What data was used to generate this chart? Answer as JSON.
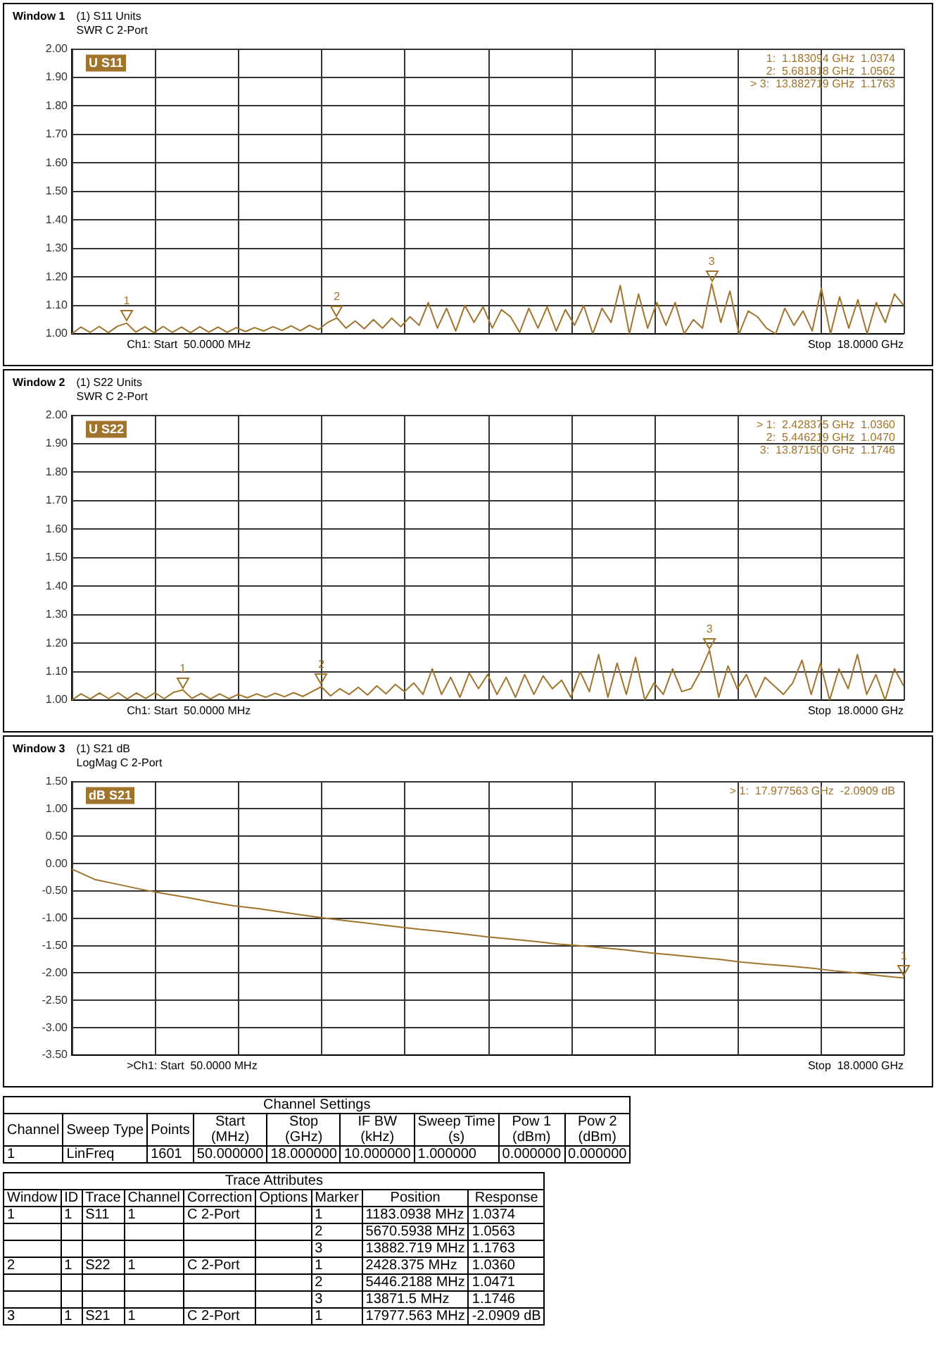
{
  "chart_data": [
    {
      "type": "line",
      "title": "Window 1",
      "subtitle": "(1) S11 Units\nSWR C  2-Port",
      "legend": "top left",
      "grid": true,
      "categories": [
        null,
        null,
        null,
        null,
        null,
        null,
        null,
        null,
        null,
        null,
        null,
        null,
        null,
        null,
        null,
        null,
        null,
        null,
        null,
        null,
        null,
        null,
        null,
        null,
        null,
        null,
        null,
        null,
        null,
        null,
        null,
        null,
        null,
        null,
        null,
        null,
        null,
        null,
        null,
        null,
        null,
        null,
        null,
        null,
        null,
        null,
        null,
        null,
        null,
        null,
        null,
        null,
        null,
        null,
        null,
        null,
        null,
        null,
        null,
        null,
        null,
        null,
        null,
        null,
        null,
        null,
        null,
        null,
        null,
        null,
        null,
        null,
        null,
        null,
        null,
        null,
        null,
        null,
        null,
        null,
        null,
        null,
        null,
        null,
        null,
        null,
        null,
        null,
        null,
        null,
        null,
        null
      ],
      "ylim": [
        1,
        2
      ],
      "yticks": [
        {
          "value": 1,
          "label": "1.00"
        },
        {
          "value": 1.1,
          "label": "1.10"
        },
        {
          "value": 1.2,
          "label": "1.20"
        },
        {
          "value": 1.3,
          "label": "1.30"
        },
        {
          "value": 1.4,
          "label": "1.40"
        },
        {
          "value": 1.5,
          "label": "1.50"
        },
        {
          "value": 1.6,
          "label": "1.60"
        },
        {
          "value": 1.7,
          "label": "1.70"
        },
        {
          "value": 1.8,
          "label": "1.80"
        },
        {
          "value": 1.9,
          "label": "1.90"
        },
        {
          "value": 2,
          "label": "2.00"
        }
      ],
      "series": [
        {
          "name": "U S11",
          "color": "#a0742c",
          "values": [
            1.0,
            1.024,
            1.005,
            1.026,
            1.004,
            1.027,
            1.0374,
            1.006,
            1.025,
            1.004,
            1.026,
            1.005,
            1.024,
            1.004,
            1.025,
            1.006,
            1.024,
            1.005,
            1.022,
            1.008,
            1.022,
            1.01,
            1.025,
            1.012,
            1.028,
            1.011,
            1.03,
            1.015,
            1.04,
            1.0562,
            1.02,
            1.045,
            1.018,
            1.05,
            1.02,
            1.055,
            1.025,
            1.06,
            1.03,
            1.11,
            1.02,
            1.09,
            1.01,
            1.1,
            1.04,
            1.095,
            1.02,
            1.085,
            1.06,
            1.005,
            1.09,
            1.02,
            1.095,
            1.01,
            1.085,
            1.03,
            1.1,
            1.0,
            1.09,
            1.04,
            1.17,
            1.0,
            1.14,
            1.02,
            1.11,
            1.03,
            1.11,
            1.0,
            1.05,
            1.02,
            1.1763,
            1.04,
            1.15,
            1.0,
            1.08,
            1.06,
            1.02,
            1.0,
            1.09,
            1.03,
            1.08,
            1.01,
            1.16,
            1.0,
            1.13,
            1.02,
            1.12,
            1.0,
            1.11,
            1.04,
            1.14,
            1.1
          ]
        }
      ],
      "annotations": [
        "Ch1: Start  50.0000 MHz",
        "Stop  18.0000 GHz",
        "1:  1.183094 GHz  1.0374",
        "2:  5.681818 GHz  1.0562",
        "> 3:  13.882719 GHz  1.1763",
        {
          "text": "1",
          "y": 1.0374
        },
        {
          "text": "2",
          "y": 1.0562
        },
        {
          "text": "3",
          "y": 1.1763
        }
      ]
    },
    {
      "type": "line",
      "title": "Window 2",
      "subtitle": "(1) S22 Units\nSWR C  2-Port",
      "legend": "top left",
      "grid": true,
      "categories": [
        null,
        null,
        null,
        null,
        null,
        null,
        null,
        null,
        null,
        null,
        null,
        null,
        null,
        null,
        null,
        null,
        null,
        null,
        null,
        null,
        null,
        null,
        null,
        null,
        null,
        null,
        null,
        null,
        null,
        null,
        null,
        null,
        null,
        null,
        null,
        null,
        null,
        null,
        null,
        null,
        null,
        null,
        null,
        null,
        null,
        null,
        null,
        null,
        null,
        null,
        null,
        null,
        null,
        null,
        null,
        null,
        null,
        null,
        null,
        null,
        null,
        null,
        null,
        null,
        null,
        null,
        null,
        null,
        null,
        null,
        null,
        null,
        null,
        null,
        null,
        null,
        null,
        null,
        null,
        null,
        null,
        null,
        null,
        null,
        null,
        null,
        null,
        null,
        null,
        null,
        null
      ],
      "ylim": [
        1,
        2
      ],
      "yticks": [
        {
          "value": 1,
          "label": "1.00"
        },
        {
          "value": 1.1,
          "label": "1.10"
        },
        {
          "value": 1.2,
          "label": "1.20"
        },
        {
          "value": 1.3,
          "label": "1.30"
        },
        {
          "value": 1.4,
          "label": "1.40"
        },
        {
          "value": 1.5,
          "label": "1.50"
        },
        {
          "value": 1.6,
          "label": "1.60"
        },
        {
          "value": 1.7,
          "label": "1.70"
        },
        {
          "value": 1.8,
          "label": "1.80"
        },
        {
          "value": 1.9,
          "label": "1.90"
        },
        {
          "value": 2,
          "label": "2.00"
        }
      ],
      "series": [
        {
          "name": "U S22",
          "color": "#a0742c",
          "values": [
            1.0,
            1.022,
            1.004,
            1.025,
            1.005,
            1.026,
            1.004,
            1.025,
            1.006,
            1.026,
            1.005,
            1.027,
            1.036,
            1.006,
            1.024,
            1.004,
            1.022,
            1.005,
            1.02,
            1.008,
            1.022,
            1.01,
            1.024,
            1.012,
            1.026,
            1.013,
            1.03,
            1.047,
            1.015,
            1.04,
            1.02,
            1.045,
            1.018,
            1.05,
            1.022,
            1.055,
            1.03,
            1.06,
            1.02,
            1.11,
            1.02,
            1.08,
            1.01,
            1.095,
            1.04,
            1.09,
            1.02,
            1.08,
            1.01,
            1.09,
            1.02,
            1.085,
            1.04,
            1.07,
            1.01,
            1.1,
            1.03,
            1.16,
            1.01,
            1.13,
            1.02,
            1.15,
            1.0,
            1.06,
            1.02,
            1.11,
            1.03,
            1.04,
            1.1,
            1.1746,
            1.01,
            1.12,
            1.04,
            1.09,
            1.01,
            1.08,
            1.05,
            1.02,
            1.06,
            1.14,
            1.02,
            1.13,
            1.0,
            1.11,
            1.04,
            1.16,
            1.02,
            1.09,
            1.0,
            1.11,
            1.05
          ]
        }
      ],
      "annotations": [
        "Ch1: Start  50.0000 MHz",
        "Stop  18.0000 GHz",
        "> 1:  2.428375 GHz  1.0360",
        "2:  5.446219 GHz  1.0470",
        "3:  13.871500 GHz  1.1746",
        {
          "text": "1",
          "y": 1.036
        },
        {
          "text": "2",
          "y": 1.047
        },
        {
          "text": "3",
          "y": 1.1746
        }
      ]
    },
    {
      "type": "line",
      "title": "Window 3",
      "subtitle": "(1) S21 dB\nLogMag C  2-Port",
      "legend": "top left",
      "grid": true,
      "categories": [
        null,
        null,
        null,
        null,
        null,
        null,
        null,
        null,
        null,
        null,
        null,
        null,
        null,
        null,
        null,
        null,
        null,
        null,
        null,
        null,
        null,
        null,
        null,
        null,
        null,
        null,
        null,
        null,
        null,
        null,
        null,
        null,
        null,
        null,
        null,
        null,
        null
      ],
      "ylim": [
        -3.5,
        1.5
      ],
      "yticks": [
        {
          "value": -3.5,
          "label": "-3.50"
        },
        {
          "value": -3,
          "label": "-3.00"
        },
        {
          "value": -2.5,
          "label": "-2.50"
        },
        {
          "value": -2,
          "label": "-2.00"
        },
        {
          "value": -1.5,
          "label": "-1.50"
        },
        {
          "value": -1,
          "label": "-1.00"
        },
        {
          "value": -0.5,
          "label": "-0.50"
        },
        {
          "value": 0,
          "label": "0.00"
        },
        {
          "value": 0.5,
          "label": "0.50"
        },
        {
          "value": 1,
          "label": "1.00"
        },
        {
          "value": 1.5,
          "label": "1.50"
        }
      ],
      "series": [
        {
          "name": "dB S21",
          "color": "#a0742c",
          "values": [
            -0.1,
            -0.29,
            -0.38,
            -0.47,
            -0.55,
            -0.62,
            -0.7,
            -0.77,
            -0.82,
            -0.88,
            -0.94,
            -1.0,
            -1.05,
            -1.1,
            -1.15,
            -1.2,
            -1.24,
            -1.29,
            -1.34,
            -1.38,
            -1.42,
            -1.47,
            -1.5,
            -1.54,
            -1.58,
            -1.63,
            -1.67,
            -1.71,
            -1.75,
            -1.8,
            -1.84,
            -1.87,
            -1.91,
            -1.96,
            -2.0,
            -2.05,
            -2.0909
          ]
        }
      ],
      "annotations": [
        ">Ch1: Start  50.0000 MHz",
        "Stop  18.0000 GHz",
        "> 1:  17.977563 GHz  -2.0909 dB",
        {
          "text": "1",
          "y": -2.0909
        }
      ]
    },
    {
      "type": "other",
      "title": "Channel Settings",
      "categories": [
        "Channel",
        "Sweep Type",
        "Points",
        "Start\n(MHz)",
        "Stop\n(GHz)",
        "IF BW\n(kHz)",
        "Sweep Time\n(s)",
        "Pow 1\n(dBm)",
        "Pow 2\n(dBm)"
      ],
      "annotations": [
        "1",
        "LinFreq",
        "1601",
        "50.000000",
        "18.000000",
        "10.000000",
        "1.000000",
        "0.000000",
        "0.000000"
      ]
    },
    {
      "type": "other",
      "title": "Trace Attributes",
      "categories": [
        "Window",
        "ID",
        "Trace",
        "Channel",
        "Correction",
        "Options",
        "Marker",
        "Position",
        "Response"
      ],
      "annotations": [
        "1",
        "1",
        "S11",
        "1",
        "C 2-Port",
        null,
        "1",
        "1183.0938 MHz",
        "1.0374",
        null,
        null,
        null,
        null,
        null,
        null,
        "2",
        "5670.5938 MHz",
        "1.0563",
        null,
        null,
        null,
        null,
        null,
        null,
        "3",
        "13882.719 MHz",
        "1.1763",
        "2",
        "1",
        "S22",
        "1",
        "C 2-Port",
        null,
        "1",
        "2428.375 MHz",
        "1.0360",
        null,
        null,
        null,
        null,
        null,
        null,
        "2",
        "5446.2188 MHz",
        "1.0471",
        null,
        null,
        null,
        null,
        null,
        null,
        "3",
        "13871.5 MHz",
        "1.1746",
        "3",
        "1",
        "S21",
        "1",
        "C 2-Port",
        null,
        "1",
        "17977.563 MHz",
        "-2.0909 dB"
      ]
    }
  ]
}
